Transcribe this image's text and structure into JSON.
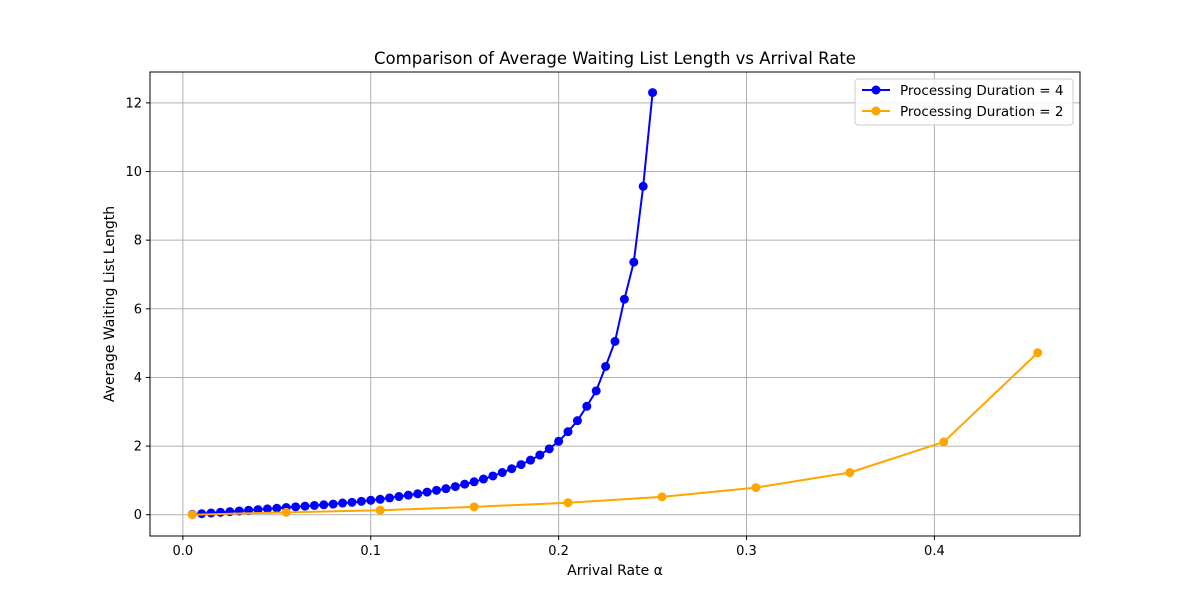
{
  "chart_data": {
    "type": "line",
    "title": "Comparison of Average Waiting List Length vs Arrival Rate",
    "xlabel": "Arrival Rate α",
    "ylabel": "Average Waiting List Length",
    "xlim": [
      -0.0175,
      0.4775
    ],
    "ylim": [
      -0.62,
      12.9
    ],
    "xticks": [
      0.0,
      0.1,
      0.2,
      0.3,
      0.4
    ],
    "xtick_labels": [
      "0.0",
      "0.1",
      "0.2",
      "0.3",
      "0.4"
    ],
    "yticks": [
      0,
      2,
      4,
      6,
      8,
      10,
      12
    ],
    "ytick_labels": [
      "0",
      "2",
      "4",
      "6",
      "8",
      "10",
      "12"
    ],
    "grid": true,
    "legend_position": "top-right",
    "series": [
      {
        "name": "Processing Duration = 4",
        "color": "#0000ff",
        "marker": "circle",
        "x": [
          0.005,
          0.01,
          0.015,
          0.02,
          0.025,
          0.03,
          0.035,
          0.04,
          0.045,
          0.05,
          0.055,
          0.06,
          0.065,
          0.07,
          0.075,
          0.08,
          0.085,
          0.09,
          0.095,
          0.1,
          0.105,
          0.11,
          0.115,
          0.12,
          0.125,
          0.13,
          0.135,
          0.14,
          0.145,
          0.15,
          0.155,
          0.16,
          0.165,
          0.17,
          0.175,
          0.18,
          0.185,
          0.19,
          0.195,
          0.2,
          0.205,
          0.21,
          0.215,
          0.22,
          0.225,
          0.23,
          0.235,
          0.24,
          0.245,
          0.25
        ],
        "y": [
          0.01,
          0.03,
          0.05,
          0.07,
          0.09,
          0.11,
          0.13,
          0.15,
          0.17,
          0.19,
          0.21,
          0.23,
          0.25,
          0.27,
          0.29,
          0.31,
          0.34,
          0.36,
          0.39,
          0.42,
          0.45,
          0.49,
          0.53,
          0.57,
          0.61,
          0.66,
          0.71,
          0.76,
          0.82,
          0.89,
          0.96,
          1.04,
          1.13,
          1.23,
          1.34,
          1.46,
          1.59,
          1.74,
          1.92,
          2.14,
          2.42,
          2.74,
          3.16,
          3.61,
          4.32,
          5.05,
          6.28,
          7.36,
          9.57,
          12.3
        ]
      },
      {
        "name": "Processing Duration = 2",
        "color": "#ffa500",
        "marker": "circle",
        "x": [
          0.005,
          0.055,
          0.105,
          0.155,
          0.205,
          0.255,
          0.305,
          0.355,
          0.405,
          0.455
        ],
        "y": [
          0.0,
          0.07,
          0.13,
          0.23,
          0.35,
          0.52,
          0.79,
          1.23,
          2.12,
          4.72
        ]
      }
    ]
  }
}
